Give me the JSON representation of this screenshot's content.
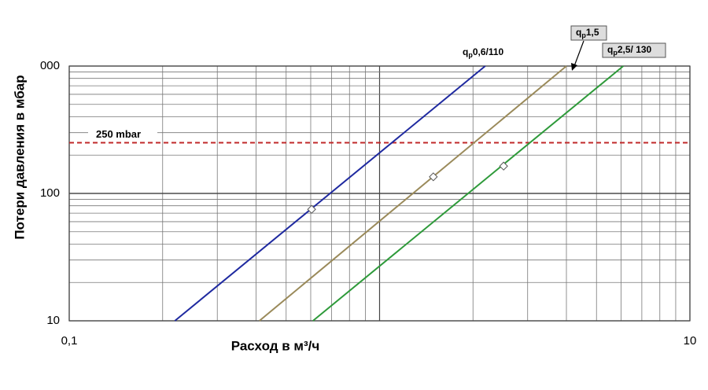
{
  "chart_data": {
    "type": "line",
    "x_label": "Расход в м³/ч",
    "y_label": "Потери давления в мбар",
    "log_x": true,
    "log_y": true,
    "grid": true,
    "xlim": [
      0.1,
      10
    ],
    "xticks": [
      {
        "value": 0.1,
        "label": "0,1"
      },
      10
    ],
    "ylim": [
      10,
      1000
    ],
    "yticks": [
      10,
      100,
      {
        "value": 1000,
        "label": "000"
      }
    ],
    "reference_line": {
      "value": 250,
      "label": "250 mbar",
      "color": "#c0282a"
    },
    "series": [
      {
        "name_parts": [
          "q",
          "p",
          "0,6/110"
        ],
        "boxed": false,
        "color": "#1f2aa0",
        "x": [
          0.219,
          2.19
        ],
        "values": [
          10,
          1000
        ],
        "marker_x": [
          0.604
        ],
        "marker_values": [
          75
        ]
      },
      {
        "name_parts": [
          "q",
          "p",
          "1,5"
        ],
        "boxed": true,
        "color": "#9a8a5a",
        "x": [
          0.41,
          4.0
        ],
        "values": [
          10,
          1000
        ],
        "marker_x": [
          1.49
        ],
        "marker_values": [
          135
        ]
      },
      {
        "name_parts": [
          "q",
          "p",
          "2,5/ 130"
        ],
        "boxed": true,
        "color": "#2e9a3a",
        "x": [
          0.61,
          6.1
        ],
        "values": [
          10,
          1000
        ],
        "marker_x": [
          2.51
        ],
        "marker_values": [
          164
        ]
      }
    ]
  }
}
